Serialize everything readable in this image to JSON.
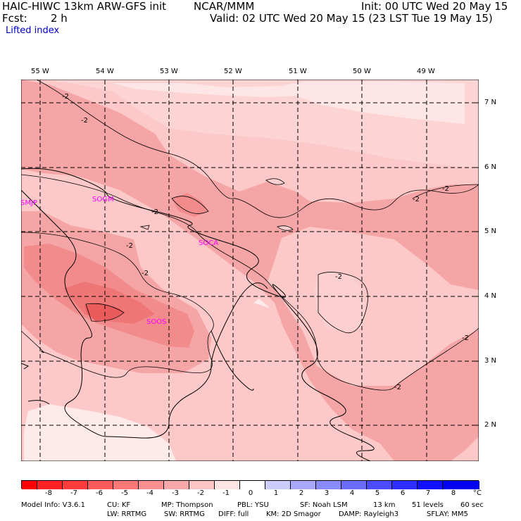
{
  "header": {
    "model": "HAIC-HIWC 13km ARW-GFS init",
    "org": "NCAR/MMM",
    "forecast_label": "Fcst:",
    "forecast_value": "2 h",
    "init": "Init: 00 UTC Wed 20 May 15",
    "valid": "Valid: 02 UTC Wed 20 May 15 (23 LST Tue 19 May 15)",
    "field": "Lifted index"
  },
  "map": {
    "lon_labels": [
      "55 W",
      "54 W",
      "53 W",
      "52 W",
      "51 W",
      "50 W",
      "49 W"
    ],
    "lat_labels": [
      "7 N",
      "6 N",
      "5 N",
      "4 N",
      "3 N",
      "2 N"
    ],
    "stations": [
      "SMJP",
      "SOGM",
      "SOCA",
      "SOOS"
    ],
    "contour_label": "-2",
    "colors": {
      "lt_neg8": "#ff0000",
      "neg8_neg7": "#ff2020",
      "neg7_neg6": "#ff3a3a",
      "neg6_neg5": "#ff5858",
      "neg5_neg4": "#ff7070",
      "neg4_neg3": "#fa8a8a",
      "neg3_neg2": "#f5a0a0",
      "neg2_neg1": "#fcc8c8",
      "neg1_0": "#ffe6e6"
    }
  },
  "colorbar": {
    "labels": [
      "-8",
      "-7",
      "-6",
      "-5",
      "-4",
      "-3",
      "-2",
      "-1",
      "0",
      "1",
      "2",
      "3",
      "4",
      "5",
      "6",
      "7",
      "8"
    ],
    "unit": "°C",
    "colors": [
      "#ff0000",
      "#ff2222",
      "#ff3c3c",
      "#ff5a5a",
      "#ff7878",
      "#fb9090",
      "#f8a8a8",
      "#fcc4c4",
      "#ffe4e4",
      "#ffffff",
      "#ccccff",
      "#a8a8ff",
      "#8a8aff",
      "#6b6bff",
      "#4c4cff",
      "#2e2eff",
      "#1010ff",
      "#0000ee"
    ]
  },
  "footer": {
    "line1": {
      "model_info": "Model Info: V3.6.1",
      "cu": "CU: KF",
      "mp": "MP: Thompson",
      "pbl": "PBL: YSU",
      "sf": "SF: Noah LSM",
      "res": "13 km",
      "levels": "51 levels",
      "dt": "60 sec"
    },
    "line2": {
      "lw": "LW: RRTMG",
      "sw": "SW: RRTMG",
      "diff": "DIFF: full",
      "km": "KM: 2D Smagor",
      "damp": "DAMP: Rayleigh3",
      "sflay": "SFLAY: MM5"
    }
  }
}
